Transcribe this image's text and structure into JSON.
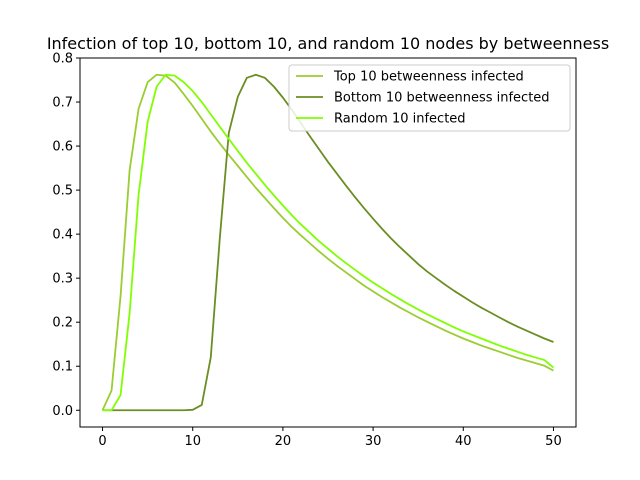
{
  "chart_data": {
    "type": "line",
    "title": "Infection of top 10, bottom 10, and random 10 nodes by betweenness",
    "xlabel": "",
    "ylabel": "",
    "xlim": [
      -2.5,
      52.5
    ],
    "ylim": [
      -0.038,
      0.8
    ],
    "xticks": [
      0,
      10,
      20,
      30,
      40,
      50
    ],
    "yticks": [
      0.0,
      0.1,
      0.2,
      0.3,
      0.4,
      0.5,
      0.6,
      0.7,
      0.8
    ],
    "ytick_labels": [
      "0.0",
      "0.1",
      "0.2",
      "0.3",
      "0.4",
      "0.5",
      "0.6",
      "0.7",
      "0.8"
    ],
    "grid": false,
    "legend_position": "top-right",
    "x": [
      0,
      1,
      2,
      3,
      4,
      5,
      6,
      7,
      8,
      9,
      10,
      11,
      12,
      13,
      14,
      15,
      16,
      17,
      18,
      19,
      20,
      21,
      22,
      23,
      24,
      25,
      26,
      27,
      28,
      29,
      30,
      31,
      32,
      33,
      34,
      35,
      36,
      37,
      38,
      39,
      40,
      41,
      42,
      43,
      44,
      45,
      46,
      47,
      48,
      49,
      50
    ],
    "series": [
      {
        "name": "Top 10 betweenness infected",
        "color": "#9ACD32",
        "values": [
          0,
          0.045,
          0.26,
          0.545,
          0.685,
          0.745,
          0.762,
          0.76,
          0.744,
          0.718,
          0.691,
          0.662,
          0.633,
          0.606,
          0.58,
          0.555,
          0.53,
          0.505,
          0.482,
          0.459,
          0.437,
          0.416,
          0.397,
          0.379,
          0.361,
          0.344,
          0.328,
          0.313,
          0.298,
          0.283,
          0.27,
          0.257,
          0.245,
          0.233,
          0.222,
          0.211,
          0.201,
          0.191,
          0.181,
          0.172,
          0.163,
          0.155,
          0.147,
          0.14,
          0.133,
          0.126,
          0.119,
          0.113,
          0.107,
          0.101,
          0.09
        ]
      },
      {
        "name": "Bottom 10 betweenness infected",
        "color": "#6B8E23",
        "values": [
          0,
          0,
          0,
          0,
          0,
          0,
          0,
          0,
          0,
          0,
          0.001,
          0.012,
          0.12,
          0.39,
          0.63,
          0.712,
          0.755,
          0.762,
          0.755,
          0.735,
          0.71,
          0.682,
          0.652,
          0.622,
          0.593,
          0.564,
          0.537,
          0.51,
          0.484,
          0.459,
          0.435,
          0.412,
          0.39,
          0.37,
          0.351,
          0.332,
          0.315,
          0.3,
          0.285,
          0.271,
          0.258,
          0.245,
          0.233,
          0.222,
          0.211,
          0.2,
          0.19,
          0.181,
          0.172,
          0.163,
          0.155
        ]
      },
      {
        "name": "Random 10 infected",
        "color": "#7FFF00",
        "values": [
          0,
          0,
          0.035,
          0.22,
          0.49,
          0.655,
          0.735,
          0.762,
          0.76,
          0.745,
          0.725,
          0.7,
          0.672,
          0.644,
          0.616,
          0.589,
          0.562,
          0.537,
          0.512,
          0.488,
          0.465,
          0.443,
          0.422,
          0.403,
          0.384,
          0.367,
          0.35,
          0.334,
          0.319,
          0.304,
          0.29,
          0.277,
          0.264,
          0.252,
          0.24,
          0.229,
          0.218,
          0.208,
          0.198,
          0.188,
          0.179,
          0.171,
          0.163,
          0.155,
          0.147,
          0.14,
          0.133,
          0.126,
          0.12,
          0.114,
          0.097
        ]
      }
    ]
  }
}
